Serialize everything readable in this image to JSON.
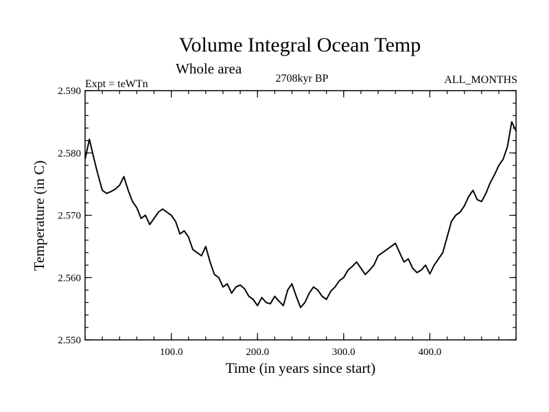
{
  "chart_data": {
    "type": "line",
    "title": "Volume Integral Ocean Temp",
    "subtitle": "Whole area",
    "left_label": "Expt = teWTn",
    "center_label": "2708kyr BP",
    "right_label": "ALL_MONTHS",
    "xlabel": "Time (in years since start)",
    "ylabel": "Temperature (in C)",
    "xlim": [
      0,
      500
    ],
    "ylim": [
      2.55,
      2.59
    ],
    "xticks": [
      100,
      200,
      300,
      400
    ],
    "xtick_labels": [
      "100.0",
      "200.0",
      "300.0",
      "400.0"
    ],
    "yticks": [
      2.55,
      2.56,
      2.57,
      2.58,
      2.59
    ],
    "ytick_labels": [
      "2.550",
      "2.560",
      "2.570",
      "2.580",
      "2.590"
    ],
    "line_color": "#000000",
    "series": [
      {
        "name": "Volume Integral Ocean Temp",
        "x": [
          0,
          5,
          10,
          15,
          20,
          25,
          30,
          35,
          40,
          45,
          50,
          55,
          60,
          65,
          70,
          75,
          80,
          85,
          90,
          95,
          100,
          105,
          110,
          115,
          120,
          125,
          130,
          135,
          140,
          145,
          150,
          155,
          160,
          165,
          170,
          175,
          180,
          185,
          190,
          195,
          200,
          205,
          210,
          215,
          220,
          225,
          230,
          235,
          240,
          245,
          250,
          255,
          260,
          265,
          270,
          275,
          280,
          285,
          290,
          295,
          300,
          305,
          310,
          315,
          320,
          325,
          330,
          335,
          340,
          345,
          350,
          355,
          360,
          365,
          370,
          375,
          380,
          385,
          390,
          395,
          400,
          405,
          410,
          415,
          420,
          425,
          430,
          435,
          440,
          445,
          450,
          455,
          460,
          465,
          470,
          475,
          480,
          485,
          490,
          495,
          500
        ],
        "values": [
          2.579,
          2.5822,
          2.5792,
          2.5765,
          2.574,
          2.5735,
          2.5738,
          2.5742,
          2.5748,
          2.5762,
          2.574,
          2.5722,
          2.5712,
          2.5695,
          2.57,
          2.5685,
          2.5695,
          2.5705,
          2.571,
          2.5705,
          2.57,
          2.569,
          2.567,
          2.5675,
          2.5665,
          2.5645,
          2.564,
          2.5635,
          2.565,
          2.5625,
          2.5605,
          2.56,
          2.5585,
          2.559,
          2.5575,
          2.5585,
          2.5588,
          2.5582,
          2.557,
          2.5565,
          2.5555,
          2.5568,
          2.556,
          2.5558,
          2.557,
          2.5562,
          2.5555,
          2.558,
          2.559,
          2.557,
          2.5552,
          2.556,
          2.5575,
          2.5585,
          2.558,
          2.557,
          2.5565,
          2.5578,
          2.5585,
          2.5595,
          2.56,
          2.5612,
          2.5618,
          2.5625,
          2.5615,
          2.5605,
          2.5612,
          2.562,
          2.5635,
          2.564,
          2.5645,
          2.565,
          2.5655,
          2.564,
          2.5625,
          2.563,
          2.5615,
          2.5608,
          2.5612,
          2.562,
          2.5606,
          2.562,
          2.563,
          2.564,
          2.5665,
          2.569,
          2.57,
          2.5705,
          2.5715,
          2.573,
          2.574,
          2.5725,
          2.5722,
          2.5735,
          2.5752,
          2.5765,
          2.578,
          2.579,
          2.581,
          2.585,
          2.5835
        ]
      }
    ]
  }
}
